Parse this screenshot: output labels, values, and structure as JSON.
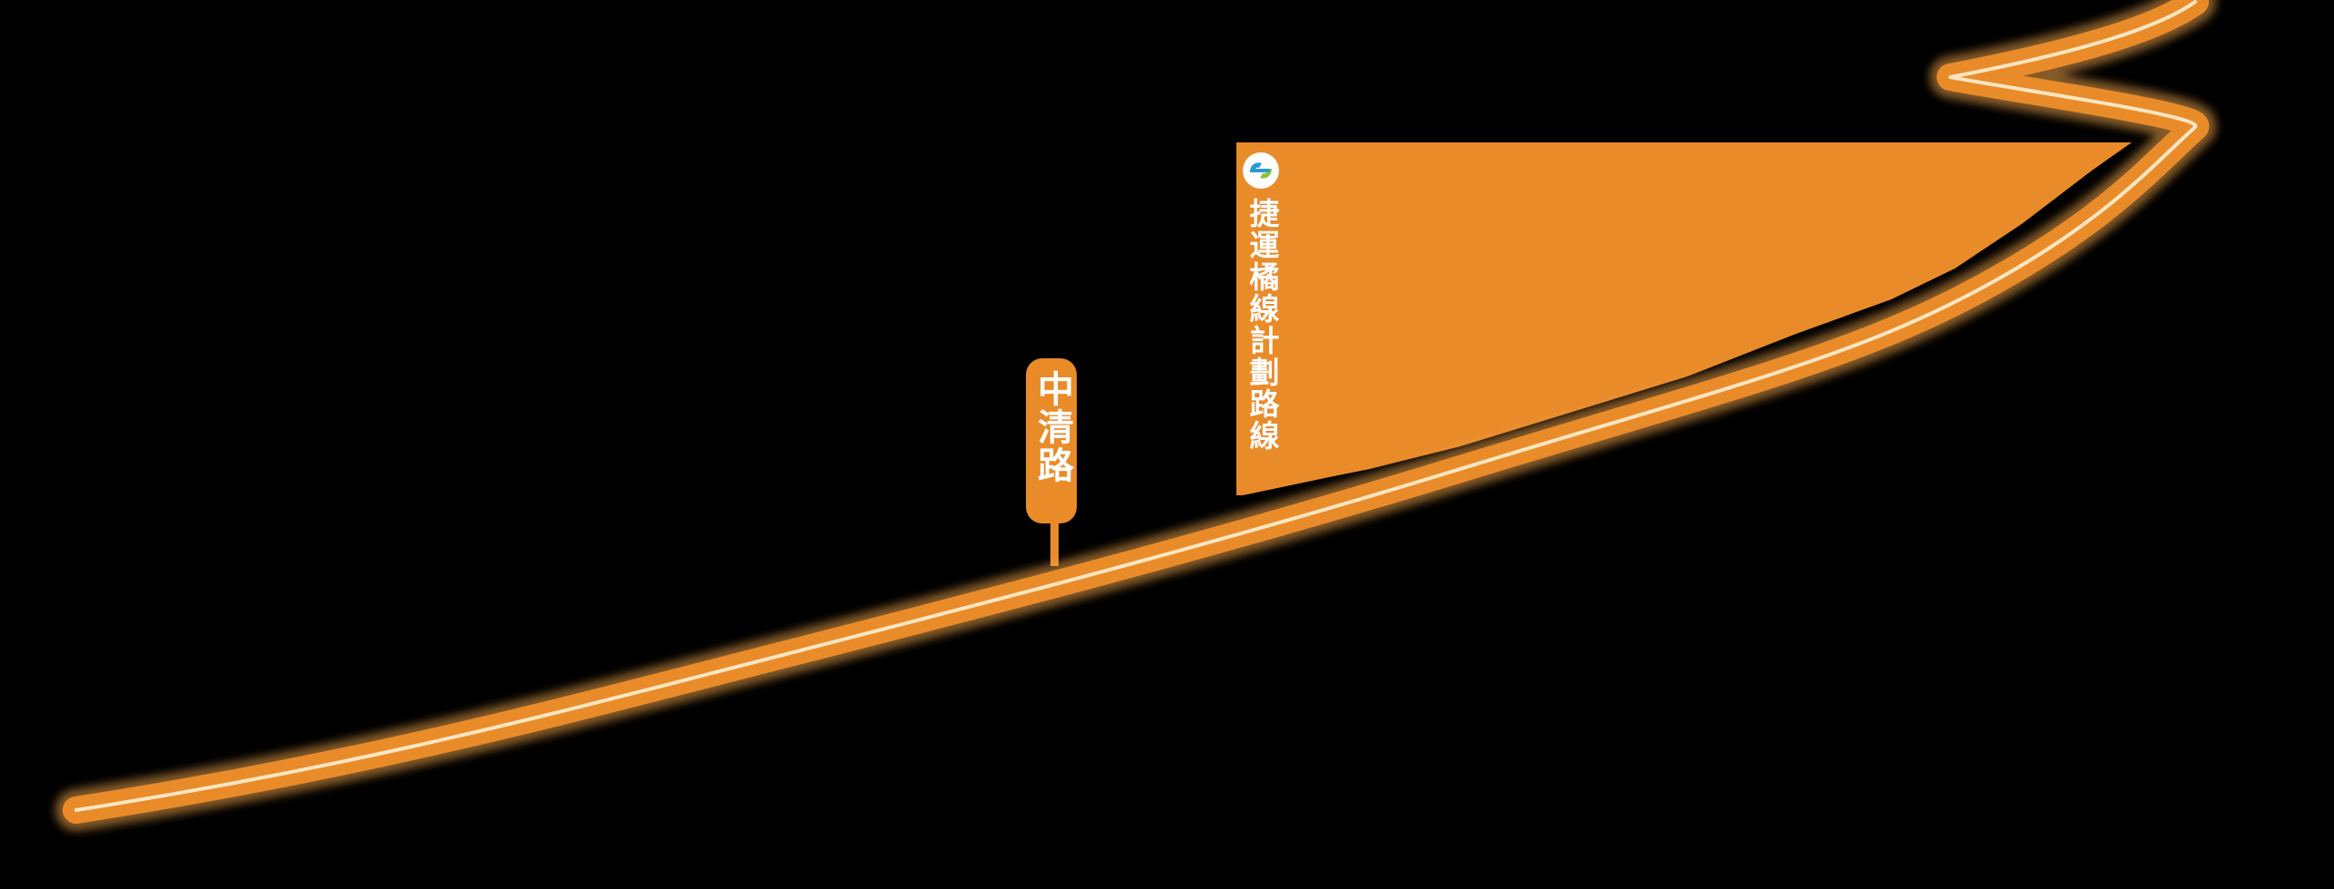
{
  "map": {
    "background_color": "#000000",
    "route_color": "#ea8b2a",
    "route_centerline_color": "#fde6c2",
    "label_fill_color": "#ea8b2a",
    "label_text_color": "#ffffff"
  },
  "labels": {
    "zhongqing_road": "中清路",
    "mrt_orange_line": "捷運橘線計劃路線"
  },
  "icons": {
    "mrt_logo": "taichung-metro-logo-icon"
  }
}
